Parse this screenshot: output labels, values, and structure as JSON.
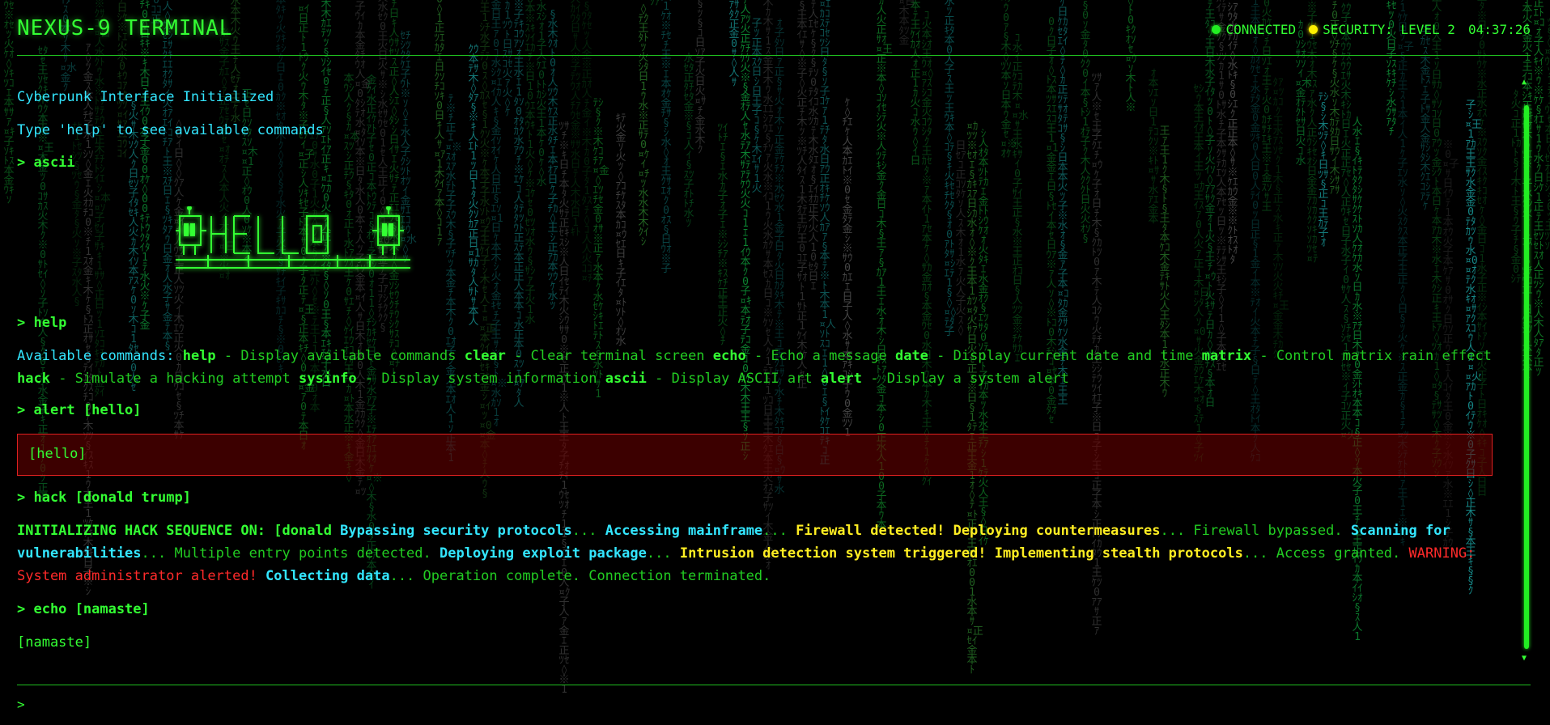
{
  "header": {
    "title": "NEXUS-9 TERMINAL",
    "status_connected": "CONNECTED",
    "status_security": "SECURITY: LEVEL 2",
    "clock": "04:37:26"
  },
  "terminal": {
    "intro1": "Cyberpunk Interface Initialized",
    "intro2": "Type 'help' to see available commands",
    "cmd_ascii": "> ascii",
    "cmd_help": "> help",
    "help_prefix": "Available commands:",
    "help_entries": [
      {
        "cmd": "help",
        "desc": " - Display available commands "
      },
      {
        "cmd": "clear",
        "desc": " - Clear terminal screen "
      },
      {
        "cmd": "echo",
        "desc": " - Echo a message "
      },
      {
        "cmd": "date",
        "desc": " - Display current date and time "
      },
      {
        "cmd": "matrix",
        "desc": " - Control matrix rain effect "
      },
      {
        "cmd": "hack",
        "desc": " - Simulate a hacking attempt "
      },
      {
        "cmd": "sysinfo",
        "desc": " - Display system information "
      },
      {
        "cmd": "ascii",
        "desc": " - Display ASCII art "
      },
      {
        "cmd": "alert",
        "desc": " - Display a system alert"
      }
    ],
    "cmd_alert": "> alert [hello]",
    "alert_message": "[hello]",
    "cmd_hack": "> hack [donald trump]",
    "hack_output": [
      {
        "style": "green-bold",
        "text": "INITIALIZING HACK SEQUENCE ON: [donald "
      },
      {
        "style": "cyan",
        "text": "Bypassing security protocols"
      },
      {
        "style": "desc",
        "text": "... "
      },
      {
        "style": "cyan",
        "text": "Accessing mainframe"
      },
      {
        "style": "desc",
        "text": "... "
      },
      {
        "style": "yellow",
        "text": "Firewall detected! Deploying countermeasures"
      },
      {
        "style": "desc",
        "text": "... Firewall bypassed. "
      },
      {
        "style": "cyan",
        "text": "Scanning for vulnerabilities"
      },
      {
        "style": "desc",
        "text": "... Multiple entry points detected. "
      },
      {
        "style": "cyan",
        "text": "Deploying exploit package"
      },
      {
        "style": "desc",
        "text": "... "
      },
      {
        "style": "yellow",
        "text": "Intrusion detection system triggered! Implementing stealth protocols"
      },
      {
        "style": "desc",
        "text": "... Access granted. "
      },
      {
        "style": "red",
        "text": "WARNING: System administrator alerted! "
      },
      {
        "style": "cyan",
        "text": "Collecting data"
      },
      {
        "style": "desc",
        "text": "... Operation complete. Connection terminated."
      }
    ],
    "cmd_echo": "> echo [namaste]",
    "echo_output": "[namaste]"
  },
  "input": {
    "prompt": ">",
    "value": ""
  },
  "colors": {
    "green": "#33ff33",
    "cyan": "#33e6ff",
    "yellow": "#ffee22",
    "red": "#ff2a2a",
    "alert_border": "#e02020"
  },
  "ascii_art_icon": "hello-robots-ascii-art"
}
